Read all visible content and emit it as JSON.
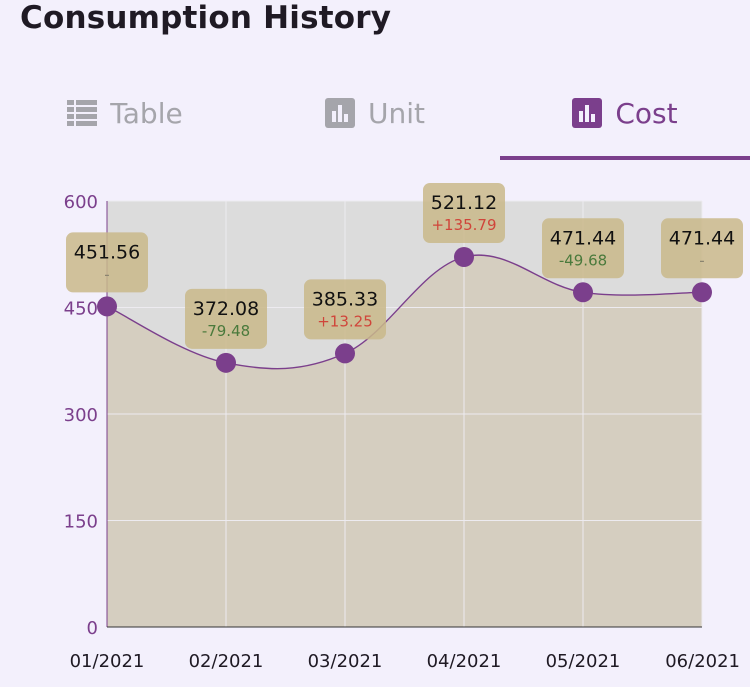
{
  "header": {
    "title": "Consumption History"
  },
  "tabs": [
    {
      "label": "Table",
      "icon": "table-icon",
      "active": false
    },
    {
      "label": "Unit",
      "icon": "bar-chart-icon",
      "active": false
    },
    {
      "label": "Cost",
      "icon": "bar-chart-icon",
      "active": true
    }
  ],
  "colors": {
    "accent": "#7B3F8C",
    "inactive": "#A5A5AB",
    "plot_bg": "#DCDCDC",
    "area_fill": "#D5CEC0",
    "label_bg": "#C9B98A",
    "delta_up": "#D0453A",
    "delta_down": "#4A7A3C",
    "delta_none": "#8A8470"
  },
  "chart_data": {
    "type": "area",
    "categories": [
      "01/2021",
      "02/2021",
      "03/2021",
      "04/2021",
      "05/2021",
      "06/2021"
    ],
    "values": [
      451.56,
      372.08,
      385.33,
      521.12,
      471.44,
      471.44
    ],
    "value_labels": [
      "451.56",
      "372.08",
      "385.33",
      "521.12",
      "471.44",
      "471.44"
    ],
    "deltas": [
      "-",
      "-79.48",
      "+13.25",
      "+135.79",
      "-49.68",
      "-"
    ],
    "yticks": [
      "0",
      "150",
      "300",
      "450",
      "600"
    ],
    "ylim": [
      0,
      600
    ],
    "grid": true
  }
}
